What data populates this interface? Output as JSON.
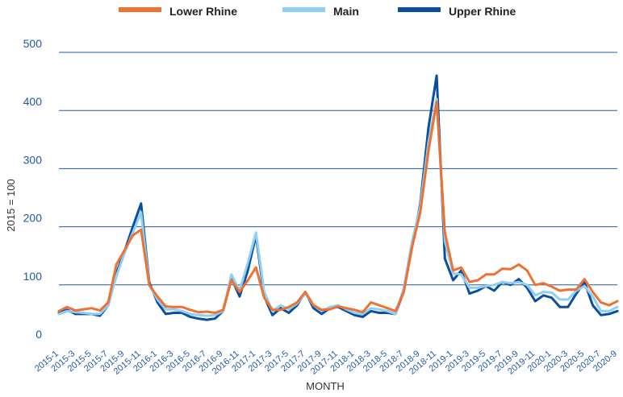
{
  "chart_data": {
    "type": "line",
    "title": "",
    "xlabel": "MONTH",
    "ylabel": "2015 = 100",
    "ylim": [
      0,
      500
    ],
    "yticks": [
      0,
      100,
      200,
      300,
      400,
      500
    ],
    "grid": true,
    "legend_position": "top-center",
    "categories": [
      "2015-1",
      "2015-2",
      "2015-3",
      "2015-4",
      "2015-5",
      "2015-6",
      "2015-7",
      "2015-8",
      "2015-9",
      "2015-10",
      "2015-11",
      "2015-12",
      "2016-1",
      "2016-2",
      "2016-3",
      "2016-4",
      "2016-5",
      "2016-6",
      "2016-7",
      "2016-8",
      "2016-9",
      "2016-10",
      "2016-11",
      "2016-12",
      "2017-1",
      "2017-2",
      "2017-3",
      "2017-4",
      "2017-5",
      "2017-6",
      "2017-7",
      "2017-8",
      "2017-9",
      "2017-10",
      "2017-11",
      "2017-12",
      "2018-1",
      "2018-2",
      "2018-3",
      "2018-4",
      "2018-5",
      "2018-6",
      "2018-7",
      "2018-8",
      "2018-9",
      "2018-10",
      "2018-11",
      "2018-12",
      "2019-1",
      "2019-2",
      "2019-3",
      "2019-4",
      "2019-5",
      "2019-6",
      "2019-7",
      "2019-8",
      "2019-9",
      "2019-10",
      "2019-11",
      "2019-12",
      "2020-1",
      "2020-2",
      "2020-3",
      "2020-4",
      "2020-5",
      "2020-6",
      "2020-7",
      "2020-8",
      "2020-9"
    ],
    "tick_labels": [
      "2015-1",
      "2015-3",
      "2015-5",
      "2015-7",
      "2015-9",
      "2015-11",
      "2016-1",
      "2016-3",
      "2016-5",
      "2016-7",
      "2016-9",
      "2016-11",
      "2017-1",
      "2017-3",
      "2017-5",
      "2017-7",
      "2017-9",
      "2017-11",
      "2018-1",
      "2018-3",
      "2018-5",
      "2018-7",
      "2018-9",
      "2018-11",
      "2019-1",
      "2019-3",
      "2019-5",
      "2019-7",
      "2019-9",
      "2019-11",
      "2020-1",
      "2020-3",
      "2020-5",
      "2020-7",
      "2020-9"
    ],
    "series": [
      {
        "name": "Upper Rhine",
        "color": "#0a4ea0",
        "values": [
          52,
          57,
          50,
          50,
          50,
          47,
          65,
          120,
          158,
          200,
          240,
          105,
          70,
          50,
          52,
          52,
          45,
          42,
          40,
          42,
          55,
          112,
          80,
          125,
          185,
          80,
          48,
          60,
          52,
          65,
          88,
          60,
          50,
          60,
          62,
          55,
          48,
          45,
          55,
          52,
          52,
          50,
          90,
          165,
          240,
          370,
          460,
          145,
          108,
          125,
          85,
          90,
          98,
          90,
          105,
          100,
          110,
          95,
          72,
          82,
          78,
          62,
          62,
          85,
          105,
          65,
          48,
          50,
          55
        ]
      },
      {
        "name": "Main",
        "color": "#8ecff2",
        "values": [
          50,
          55,
          53,
          52,
          50,
          50,
          65,
          115,
          155,
          190,
          225,
          100,
          75,
          58,
          58,
          55,
          50,
          48,
          47,
          48,
          55,
          118,
          90,
          138,
          190,
          88,
          55,
          65,
          58,
          68,
          85,
          65,
          55,
          62,
          65,
          58,
          52,
          50,
          60,
          58,
          55,
          50,
          95,
          175,
          235,
          345,
          420,
          175,
          120,
          118,
          95,
          95,
          98,
          100,
          105,
          103,
          105,
          100,
          82,
          88,
          87,
          75,
          75,
          90,
          98,
          80,
          55,
          55,
          62
        ]
      },
      {
        "name": "Lower Rhine",
        "color": "#ef7131",
        "values": [
          55,
          62,
          56,
          58,
          60,
          56,
          70,
          135,
          160,
          185,
          195,
          100,
          80,
          63,
          62,
          62,
          57,
          53,
          54,
          52,
          57,
          108,
          88,
          108,
          130,
          78,
          57,
          57,
          62,
          70,
          88,
          65,
          57,
          58,
          63,
          60,
          57,
          53,
          70,
          65,
          60,
          55,
          88,
          165,
          225,
          330,
          415,
          190,
          125,
          130,
          105,
          108,
          118,
          118,
          128,
          127,
          135,
          125,
          100,
          103,
          97,
          90,
          92,
          92,
          110,
          88,
          70,
          65,
          72
        ]
      }
    ]
  },
  "legend": {
    "items": [
      {
        "label": "Lower Rhine",
        "color": "#ef7131"
      },
      {
        "label": "Main",
        "color": "#8ecff2"
      },
      {
        "label": "Upper Rhine",
        "color": "#0a4ea0"
      }
    ]
  }
}
